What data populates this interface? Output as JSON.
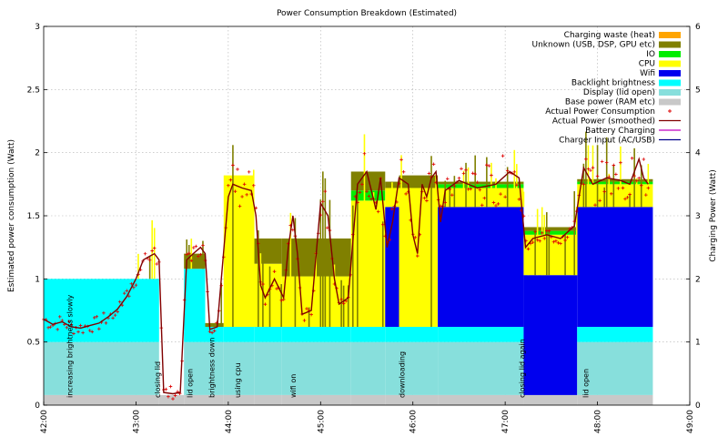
{
  "chart_data": {
    "type": "area",
    "title": "Power Consumption Breakdown (Estimated)",
    "ylabel": "Estimated power consumption (Watt)",
    "y2label": "Charging Power (Watt)",
    "xlabel": "",
    "ylim": [
      0,
      3
    ],
    "y2lim": [
      0,
      6
    ],
    "yticks": [
      "0",
      "0.5",
      "1",
      "1.5",
      "2",
      "2.5",
      "3"
    ],
    "y2ticks": [
      "0",
      "1",
      "2",
      "3",
      "4",
      "5",
      "6"
    ],
    "xticks": [
      "42:00",
      "43:00",
      "44:00",
      "45:00",
      "46:00",
      "47:00",
      "48:00",
      "49:00"
    ],
    "xlim_minutes": [
      42,
      49
    ],
    "grid": true,
    "legend_position": "top-right",
    "legend": [
      {
        "label": "Charging waste (heat)",
        "color": "#ffa500",
        "kind": "box"
      },
      {
        "label": "Unknown (USB, DSP, GPU etc)",
        "color": "#808000",
        "kind": "box"
      },
      {
        "label": "IO",
        "color": "#00ee00",
        "kind": "box"
      },
      {
        "label": "CPU",
        "color": "#ffff00",
        "kind": "box"
      },
      {
        "label": "Wifi",
        "color": "#0000ee",
        "kind": "box"
      },
      {
        "label": "Backlight brightness",
        "color": "#00ffff",
        "kind": "box"
      },
      {
        "label": "Display (lid open)",
        "color": "#87dfdc",
        "kind": "box"
      },
      {
        "label": "Base power (RAM etc)",
        "color": "#c8c8c8",
        "kind": "box"
      },
      {
        "label": "Actual Power Consumption",
        "color": "#dd0000",
        "kind": "point"
      },
      {
        "label": "Actual Power (smoothed)",
        "color": "#800000",
        "kind": "line"
      },
      {
        "label": "Battery Charging",
        "color": "#c000c0",
        "kind": "line"
      },
      {
        "label": "Charger Input (AC/USB)",
        "color": "#00008b",
        "kind": "line"
      }
    ],
    "annotations": [
      {
        "text": "increasing brightness slowly",
        "x": 42.28
      },
      {
        "text": "closing lid",
        "x": 43.23
      },
      {
        "text": "lid open",
        "x": 43.58
      },
      {
        "text": "brightness down",
        "x": 43.82
      },
      {
        "text": "using cpu",
        "x": 44.1
      },
      {
        "text": "wifi on",
        "x": 44.7
      },
      {
        "text": "downloading",
        "x": 45.88
      },
      {
        "text": "closing lid again",
        "x": 47.18
      },
      {
        "text": "lid open",
        "x": 47.87
      }
    ],
    "segments": [
      {
        "x0": 42.0,
        "x1": 43.25,
        "base": 0.08,
        "display": 0.42,
        "backlight": 0.5,
        "wifi": 0,
        "cpu": 0,
        "io": 0,
        "unknown": 0
      },
      {
        "x0": 43.25,
        "x1": 43.52,
        "base": 0.08,
        "display": 0,
        "backlight": 0,
        "wifi": 0,
        "cpu": 0,
        "io": 0,
        "unknown": 0
      },
      {
        "x0": 43.52,
        "x1": 43.75,
        "base": 0.08,
        "display": 0.42,
        "backlight": 0.58,
        "wifi": 0,
        "cpu": 0,
        "io": 0,
        "unknown": 0.12
      },
      {
        "x0": 43.75,
        "x1": 43.95,
        "base": 0.08,
        "display": 0.42,
        "backlight": 0.12,
        "wifi": 0,
        "cpu": 0,
        "io": 0,
        "unknown": 0.03
      },
      {
        "x0": 43.95,
        "x1": 44.28,
        "base": 0.08,
        "display": 0.42,
        "backlight": 0.12,
        "wifi": 0,
        "cpu": 1.2,
        "io": 0,
        "unknown": 0
      },
      {
        "x0": 44.28,
        "x1": 44.58,
        "base": 0.08,
        "display": 0.42,
        "backlight": 0.12,
        "wifi": 0,
        "cpu": 0.5,
        "io": 0,
        "unknown": 0.2
      },
      {
        "x0": 44.58,
        "x1": 45.33,
        "base": 0.08,
        "display": 0.42,
        "backlight": 0.12,
        "wifi": 0,
        "cpu": 0.4,
        "io": 0,
        "unknown": 0.3
      },
      {
        "x0": 45.33,
        "x1": 45.7,
        "base": 0.08,
        "display": 0.42,
        "backlight": 0.12,
        "wifi": 0,
        "cpu": 1.0,
        "io": 0.08,
        "unknown": 0.15
      },
      {
        "x0": 45.7,
        "x1": 45.85,
        "base": 0.08,
        "display": 0.42,
        "backlight": 0.12,
        "wifi": 0.95,
        "cpu": 0.15,
        "io": 0,
        "unknown": 0.05
      },
      {
        "x0": 45.85,
        "x1": 46.27,
        "base": 0.08,
        "display": 0.42,
        "backlight": 0.12,
        "wifi": 0,
        "cpu": 1.1,
        "io": 0,
        "unknown": 0.1
      },
      {
        "x0": 46.27,
        "x1": 47.2,
        "base": 0.08,
        "display": 0.42,
        "backlight": 0.12,
        "wifi": 0.95,
        "cpu": 0.15,
        "io": 0.03,
        "unknown": 0.02
      },
      {
        "x0": 47.2,
        "x1": 47.78,
        "base": 0.08,
        "display": 0,
        "backlight": 0,
        "wifi": 0.95,
        "cpu": 0.32,
        "io": 0.03,
        "unknown": 0.03
      },
      {
        "x0": 47.78,
        "x1": 48.6,
        "base": 0.08,
        "display": 0.42,
        "backlight": 0.12,
        "wifi": 0.95,
        "cpu": 0.18,
        "io": 0.02,
        "unknown": 0.02
      }
    ],
    "smoothed_power": [
      [
        42.0,
        0.68
      ],
      [
        42.05,
        0.66
      ],
      [
        42.1,
        0.64
      ],
      [
        42.2,
        0.66
      ],
      [
        42.3,
        0.62
      ],
      [
        42.4,
        0.61
      ],
      [
        42.5,
        0.63
      ],
      [
        42.6,
        0.65
      ],
      [
        42.7,
        0.7
      ],
      [
        42.8,
        0.76
      ],
      [
        42.9,
        0.86
      ],
      [
        43.0,
        1.0
      ],
      [
        43.08,
        1.15
      ],
      [
        43.15,
        1.18
      ],
      [
        43.2,
        1.2
      ],
      [
        43.25,
        1.15
      ],
      [
        43.3,
        0.1
      ],
      [
        43.4,
        0.09
      ],
      [
        43.48,
        0.1
      ],
      [
        43.55,
        1.15
      ],
      [
        43.62,
        1.2
      ],
      [
        43.7,
        1.25
      ],
      [
        43.75,
        1.2
      ],
      [
        43.8,
        0.6
      ],
      [
        43.88,
        0.62
      ],
      [
        44.0,
        1.65
      ],
      [
        44.05,
        1.75
      ],
      [
        44.15,
        1.72
      ],
      [
        44.25,
        1.7
      ],
      [
        44.3,
        1.5
      ],
      [
        44.35,
        0.95
      ],
      [
        44.4,
        0.85
      ],
      [
        44.5,
        1.0
      ],
      [
        44.6,
        0.85
      ],
      [
        44.65,
        1.25
      ],
      [
        44.7,
        1.5
      ],
      [
        44.75,
        1.2
      ],
      [
        44.8,
        0.72
      ],
      [
        44.9,
        0.75
      ],
      [
        45.0,
        1.6
      ],
      [
        45.08,
        1.5
      ],
      [
        45.15,
        1.0
      ],
      [
        45.2,
        0.8
      ],
      [
        45.3,
        0.85
      ],
      [
        45.4,
        1.75
      ],
      [
        45.5,
        1.85
      ],
      [
        45.55,
        1.7
      ],
      [
        45.6,
        1.55
      ],
      [
        45.65,
        1.8
      ],
      [
        45.72,
        1.25
      ],
      [
        45.78,
        1.45
      ],
      [
        45.85,
        1.8
      ],
      [
        45.95,
        1.75
      ],
      [
        46.0,
        1.35
      ],
      [
        46.05,
        1.2
      ],
      [
        46.1,
        1.75
      ],
      [
        46.15,
        1.65
      ],
      [
        46.2,
        1.8
      ],
      [
        46.25,
        1.85
      ],
      [
        46.3,
        1.45
      ],
      [
        46.35,
        1.7
      ],
      [
        46.5,
        1.78
      ],
      [
        46.7,
        1.72
      ],
      [
        46.9,
        1.75
      ],
      [
        47.05,
        1.85
      ],
      [
        47.15,
        1.8
      ],
      [
        47.22,
        1.25
      ],
      [
        47.3,
        1.32
      ],
      [
        47.45,
        1.35
      ],
      [
        47.6,
        1.32
      ],
      [
        47.75,
        1.42
      ],
      [
        47.85,
        1.88
      ],
      [
        47.95,
        1.75
      ],
      [
        48.1,
        1.8
      ],
      [
        48.25,
        1.78
      ],
      [
        48.35,
        1.75
      ],
      [
        48.45,
        1.95
      ],
      [
        48.5,
        1.8
      ],
      [
        48.55,
        1.75
      ]
    ]
  }
}
